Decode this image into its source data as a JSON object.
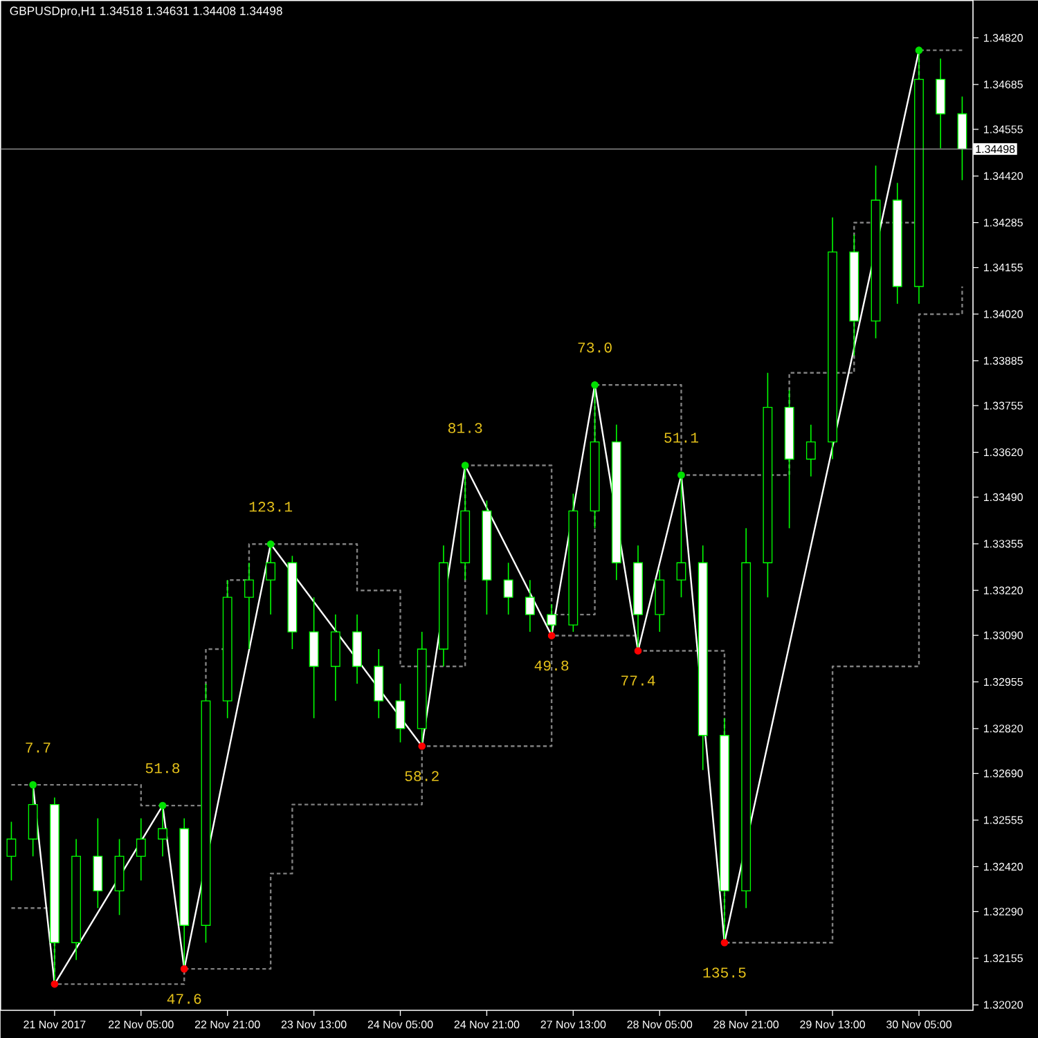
{
  "chart_data": {
    "type": "candlestick",
    "title": "GBPUSDpro,H1  1.34518 1.34631 1.34408 1.34498",
    "color": "#00ff00",
    "categories": [
      null,
      null,
      "21 Nov 2017",
      null,
      null,
      null,
      "22 Nov 05:00",
      null,
      null,
      null,
      "22 Nov 21:00",
      null,
      null,
      null,
      "23 Nov 13:00",
      null,
      null,
      null,
      "24 Nov 05:00",
      null,
      null,
      null,
      "24 Nov 21:00",
      null,
      null,
      null,
      "27 Nov 13:00",
      null,
      null,
      null,
      "28 Nov 05:00",
      null,
      null,
      null,
      "28 Nov 21:00",
      null,
      null,
      null,
      "29 Nov 13:00",
      null,
      null,
      null,
      "30 Nov 05:00",
      null,
      null
    ],
    "ohlc": [
      [
        1.3245,
        1.3255,
        1.3238,
        1.325
      ],
      [
        1.325,
        1.32657,
        1.3245,
        1.326
      ],
      [
        1.326,
        1.3262,
        1.3208,
        1.322
      ],
      [
        1.322,
        1.325,
        1.3215,
        1.3245
      ],
      [
        1.3245,
        1.3256,
        1.323,
        1.3235
      ],
      [
        1.3235,
        1.325,
        1.3228,
        1.3245
      ],
      [
        1.3245,
        1.3256,
        1.3238,
        1.325
      ],
      [
        1.325,
        1.32597,
        1.3245,
        1.3253
      ],
      [
        1.3253,
        1.3256,
        1.32124,
        1.3225
      ],
      [
        1.3225,
        1.3295,
        1.322,
        1.329
      ],
      [
        1.329,
        1.3325,
        1.3285,
        1.332
      ],
      [
        1.332,
        1.333,
        1.3305,
        1.3325
      ],
      [
        1.3325,
        1.33354,
        1.3315,
        1.333
      ],
      [
        1.333,
        1.3332,
        1.3305,
        1.331
      ],
      [
        1.331,
        1.332,
        1.3285,
        1.33
      ],
      [
        1.33,
        1.3315,
        1.329,
        1.331
      ],
      [
        1.331,
        1.3315,
        1.3295,
        1.33
      ],
      [
        1.33,
        1.3305,
        1.3285,
        1.329
      ],
      [
        1.329,
        1.3295,
        1.3278,
        1.3282
      ],
      [
        1.3282,
        1.331,
        1.32769,
        1.3305
      ],
      [
        1.3305,
        1.3335,
        1.33,
        1.333
      ],
      [
        1.333,
        1.33582,
        1.3325,
        1.3345
      ],
      [
        1.3345,
        1.3348,
        1.3315,
        1.3325
      ],
      [
        1.3325,
        1.333,
        1.3315,
        1.332
      ],
      [
        1.332,
        1.3325,
        1.331,
        1.3315
      ],
      [
        1.3315,
        1.3318,
        1.33089,
        1.3312
      ],
      [
        1.3312,
        1.335,
        1.331,
        1.3345
      ],
      [
        1.3345,
        1.33815,
        1.334,
        1.3365
      ],
      [
        1.3365,
        1.337,
        1.3325,
        1.333
      ],
      [
        1.333,
        1.3335,
        1.33045,
        1.3315
      ],
      [
        1.3315,
        1.3328,
        1.331,
        1.3325
      ],
      [
        1.3325,
        1.33554,
        1.332,
        1.333
      ],
      [
        1.333,
        1.3335,
        1.327,
        1.328
      ],
      [
        1.328,
        1.3285,
        1.322,
        1.3235
      ],
      [
        1.3235,
        1.334,
        1.323,
        1.333
      ],
      [
        1.333,
        1.3385,
        1.332,
        1.3375
      ],
      [
        1.3375,
        1.338,
        1.334,
        1.336
      ],
      [
        1.336,
        1.337,
        1.3355,
        1.3365
      ],
      [
        1.3365,
        1.343,
        1.336,
        1.342
      ],
      [
        1.342,
        1.3425,
        1.339,
        1.34
      ],
      [
        1.34,
        1.3445,
        1.3395,
        1.3435
      ],
      [
        1.3435,
        1.344,
        1.3405,
        1.341
      ],
      [
        1.341,
        1.34784,
        1.3405,
        1.347
      ],
      [
        1.347,
        1.3476,
        1.345,
        1.346
      ],
      [
        1.346,
        1.3465,
        1.34408,
        1.34498
      ]
    ],
    "series": [
      {
        "type": "step",
        "color": "#808080",
        "line_style": "dashed",
        "values": [
          1.32657,
          1.32657,
          1.32657,
          1.32657,
          1.32657,
          1.32657,
          1.32597,
          1.32597,
          1.32597,
          1.3305,
          1.3325,
          1.33354,
          1.33354,
          1.33354,
          1.33354,
          1.33354,
          1.3322,
          1.3322,
          1.33,
          1.33,
          1.33,
          1.33582,
          1.33582,
          1.33582,
          1.33582,
          1.3315,
          1.3315,
          1.33815,
          1.33815,
          1.33815,
          1.33815,
          1.33554,
          1.33554,
          1.33554,
          1.33554,
          1.33554,
          1.3385,
          1.3385,
          1.3385,
          1.34285,
          1.34285,
          1.34285,
          1.34784,
          1.34784,
          1.34784
        ]
      },
      {
        "type": "step",
        "color": "#808080",
        "line_style": "dashed",
        "values": [
          1.323,
          1.323,
          1.3208,
          1.3208,
          1.3208,
          1.3208,
          1.3208,
          1.3208,
          1.32124,
          1.32124,
          1.32124,
          1.32124,
          1.324,
          1.326,
          1.326,
          1.326,
          1.326,
          1.326,
          1.326,
          1.32769,
          1.32769,
          1.32769,
          1.32769,
          1.32769,
          1.32769,
          1.33089,
          1.33089,
          1.33089,
          1.33089,
          1.33045,
          1.33045,
          1.33045,
          1.33045,
          1.322,
          1.322,
          1.322,
          1.322,
          1.322,
          1.33,
          1.33,
          1.33,
          1.33,
          1.3402,
          1.3402,
          1.341
        ]
      },
      {
        "type": "line",
        "color": "#ffffff",
        "marker": "circle",
        "values": [
          null,
          1.32657,
          1.3208,
          null,
          null,
          null,
          null,
          1.32597,
          1.32124,
          null,
          null,
          null,
          1.33354,
          null,
          null,
          null,
          null,
          null,
          null,
          1.32769,
          null,
          1.33582,
          null,
          null,
          null,
          1.33089,
          null,
          1.33815,
          null,
          1.33045,
          null,
          1.33554,
          null,
          1.322,
          null,
          null,
          null,
          null,
          null,
          null,
          null,
          null,
          1.34784,
          null,
          null
        ],
        "colors": [
          null,
          "#00e000",
          "#ff0000",
          null,
          null,
          null,
          null,
          "#00e000",
          "#ff0000",
          null,
          null,
          null,
          "#00e000",
          null,
          null,
          null,
          null,
          null,
          null,
          "#ff0000",
          null,
          "#00e000",
          null,
          null,
          null,
          "#ff0000",
          null,
          "#00e000",
          null,
          "#ff0000",
          null,
          "#00e000",
          null,
          "#ff0000",
          null,
          null,
          null,
          null,
          null,
          null,
          null,
          null,
          "#00e000",
          null,
          null
        ]
      }
    ],
    "annotations": [
      {
        "text": "7.7",
        "y": 1.32657
      },
      {
        "text": "51.8",
        "y": 1.32597
      },
      {
        "text": "47.6",
        "y": 1.32124
      },
      {
        "text": "123.1",
        "y": 1.33354
      },
      {
        "text": "58.2",
        "y": 1.32769
      },
      {
        "text": "81.3",
        "y": 1.33582
      },
      {
        "text": "49.8",
        "y": 1.33089
      },
      {
        "text": "73.0",
        "y": 1.33815
      },
      {
        "text": "77.4",
        "y": 1.33045
      },
      {
        "text": "51.1",
        "y": 1.33554
      },
      {
        "text": "135.5",
        "y": 1.322
      }
    ],
    "ref_lines": [
      {
        "axis": "y",
        "value": 1.34498,
        "label": "1.34498",
        "color": "#a0a0a0"
      }
    ],
    "ylim": [
      1.32004,
      1.34928
    ],
    "yticks": [
      {
        "value": 1.3202,
        "label": "1.32020"
      },
      {
        "value": 1.32155,
        "label": "1.32155"
      },
      {
        "value": 1.3229,
        "label": "1.32290"
      },
      {
        "value": 1.3242,
        "label": "1.32420"
      },
      {
        "value": 1.32555,
        "label": "1.32555"
      },
      {
        "value": 1.3269,
        "label": "1.32690"
      },
      {
        "value": 1.3282,
        "label": "1.32820"
      },
      {
        "value": 1.32955,
        "label": "1.32955"
      },
      {
        "value": 1.3309,
        "label": "1.33090"
      },
      {
        "value": 1.3322,
        "label": "1.33220"
      },
      {
        "value": 1.33355,
        "label": "1.33355"
      },
      {
        "value": 1.3349,
        "label": "1.33490"
      },
      {
        "value": 1.3362,
        "label": "1.33620"
      },
      {
        "value": 1.33755,
        "label": "1.33755"
      },
      {
        "value": 1.33885,
        "label": "1.33885"
      },
      {
        "value": 1.3402,
        "label": "1.34020"
      },
      {
        "value": 1.34155,
        "label": "1.34155"
      },
      {
        "value": 1.34285,
        "label": "1.34285"
      },
      {
        "value": 1.3442,
        "label": "1.34420"
      },
      {
        "value": 1.34555,
        "label": "1.34555"
      },
      {
        "value": 1.34685,
        "label": "1.34685"
      },
      {
        "value": 1.3482,
        "label": "1.34820"
      }
    ]
  }
}
